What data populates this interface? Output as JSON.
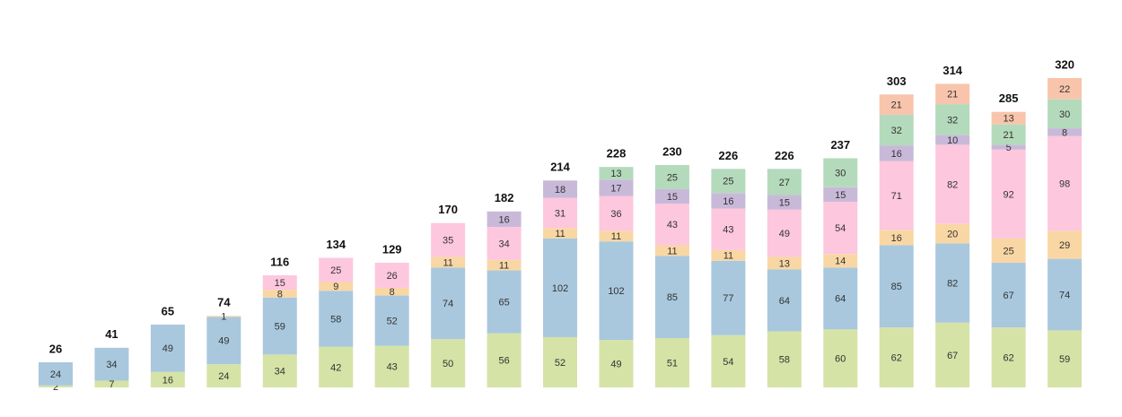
{
  "chart_data": {
    "type": "stacked_bar",
    "series": [
      {
        "color": "#d5e3a6",
        "values": [
          2,
          7,
          16,
          24,
          34,
          42,
          43,
          50,
          56,
          52,
          49,
          51,
          54,
          58,
          60,
          62,
          67,
          62,
          59
        ]
      },
      {
        "color": "#a9c8de",
        "values": [
          24,
          34,
          49,
          49,
          59,
          58,
          52,
          74,
          65,
          102,
          102,
          85,
          77,
          64,
          64,
          85,
          82,
          67,
          74
        ]
      },
      {
        "color": "#f9d7a4",
        "values": [
          null,
          null,
          null,
          1,
          8,
          9,
          8,
          11,
          11,
          11,
          11,
          11,
          11,
          13,
          14,
          16,
          20,
          25,
          29
        ]
      },
      {
        "color": "#fdc7de",
        "values": [
          null,
          null,
          null,
          null,
          15,
          25,
          26,
          35,
          34,
          31,
          36,
          43,
          43,
          49,
          54,
          71,
          82,
          92,
          98
        ]
      },
      {
        "color": "#c9b9d9",
        "values": [
          null,
          null,
          null,
          null,
          null,
          null,
          null,
          null,
          16,
          18,
          17,
          15,
          16,
          15,
          15,
          16,
          10,
          5,
          8
        ]
      },
      {
        "color": "#b4dabc",
        "values": [
          null,
          null,
          null,
          null,
          null,
          null,
          null,
          null,
          null,
          null,
          13,
          25,
          25,
          27,
          30,
          32,
          32,
          21,
          30
        ]
      },
      {
        "color": "#f8c5ac",
        "values": [
          null,
          null,
          null,
          null,
          null,
          null,
          null,
          null,
          null,
          null,
          null,
          null,
          null,
          null,
          null,
          21,
          21,
          13,
          22
        ]
      }
    ],
    "totals": [
      26,
      41,
      65,
      74,
      116,
      134,
      129,
      170,
      182,
      214,
      228,
      230,
      226,
      226,
      237,
      303,
      314,
      285,
      320
    ]
  }
}
